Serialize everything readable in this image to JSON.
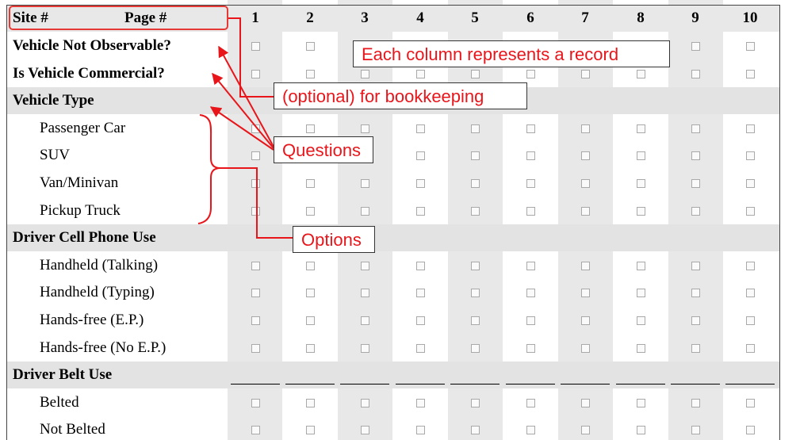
{
  "header": {
    "site_label": "Site #",
    "page_label": "Page #",
    "columns": [
      "1",
      "2",
      "3",
      "4",
      "5",
      "6",
      "7",
      "8",
      "9",
      "10"
    ]
  },
  "rows": [
    {
      "label": "Vehicle Not Observable?",
      "kind": "question",
      "bold": true
    },
    {
      "label": "Is Vehicle Commercial?",
      "kind": "question",
      "bold": true
    },
    {
      "label": "Vehicle Type",
      "kind": "section",
      "bold": true
    },
    {
      "label": "Passenger Car",
      "kind": "option"
    },
    {
      "label": "SUV",
      "kind": "option"
    },
    {
      "label": "Van/Minivan",
      "kind": "option"
    },
    {
      "label": "Pickup Truck",
      "kind": "option"
    },
    {
      "label": "Driver Cell Phone Use",
      "kind": "section",
      "bold": true
    },
    {
      "label": "Handheld (Talking)",
      "kind": "option"
    },
    {
      "label": "Handheld (Typing)",
      "kind": "option"
    },
    {
      "label": "Hands-free (E.P.)",
      "kind": "option"
    },
    {
      "label": "Hands-free (No E.P.)",
      "kind": "option"
    },
    {
      "label": "Driver Belt Use",
      "kind": "section-blank",
      "bold": true
    },
    {
      "label": "Belted",
      "kind": "option"
    },
    {
      "label": "Not Belted",
      "kind": "option"
    }
  ],
  "annotations": {
    "record": "Each column represents a record",
    "bookkeeping": "(optional) for bookkeeping",
    "questions": "Questions",
    "options": "Options",
    "color": "#e8161b"
  }
}
